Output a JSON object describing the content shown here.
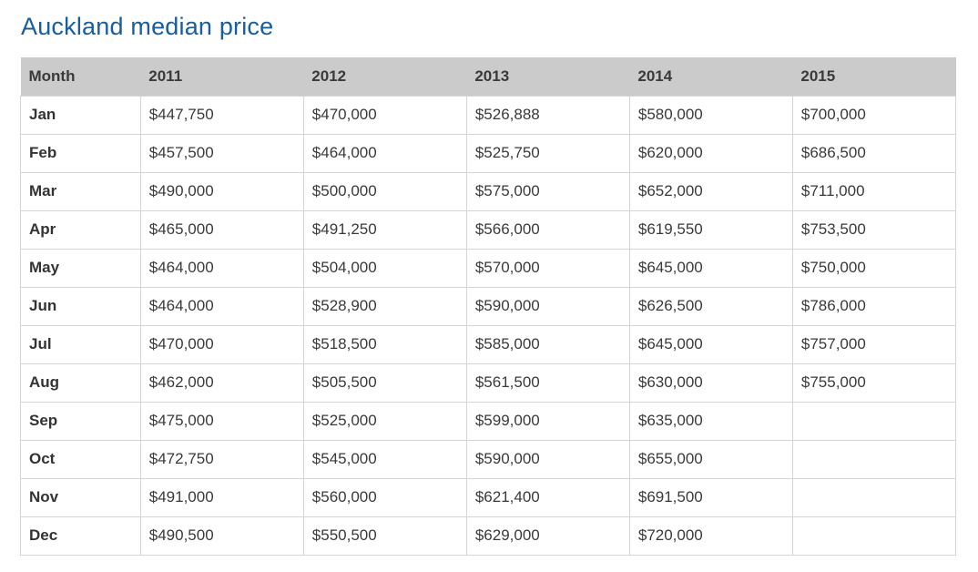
{
  "page": {
    "title": "Auckland median price"
  },
  "colors": {
    "title_blue": "#1a5d9c",
    "header_background": "#cbcbcb",
    "cell_border": "#d5d5d5",
    "text": "#333333"
  },
  "table": {
    "columns": [
      "Month",
      "2011",
      "2012",
      "2013",
      "2014",
      "2015"
    ],
    "rows": [
      {
        "month": "Jan",
        "values": [
          "$447,750",
          "$470,000",
          "$526,888",
          "$580,000",
          "$700,000"
        ]
      },
      {
        "month": "Feb",
        "values": [
          "$457,500",
          "$464,000",
          "$525,750",
          "$620,000",
          "$686,500"
        ]
      },
      {
        "month": "Mar",
        "values": [
          "$490,000",
          "$500,000",
          "$575,000",
          "$652,000",
          "$711,000"
        ]
      },
      {
        "month": "Apr",
        "values": [
          "$465,000",
          "$491,250",
          "$566,000",
          "$619,550",
          "$753,500"
        ]
      },
      {
        "month": "May",
        "values": [
          "$464,000",
          "$504,000",
          "$570,000",
          "$645,000",
          "$750,000"
        ]
      },
      {
        "month": "Jun",
        "values": [
          "$464,000",
          "$528,900",
          "$590,000",
          "$626,500",
          "$786,000"
        ]
      },
      {
        "month": "Jul",
        "values": [
          "$470,000",
          "$518,500",
          "$585,000",
          "$645,000",
          "$757,000"
        ]
      },
      {
        "month": "Aug",
        "values": [
          "$462,000",
          "$505,500",
          "$561,500",
          "$630,000",
          "$755,000"
        ]
      },
      {
        "month": "Sep",
        "values": [
          "$475,000",
          "$525,000",
          "$599,000",
          "$635,000",
          ""
        ]
      },
      {
        "month": "Oct",
        "values": [
          "$472,750",
          "$545,000",
          "$590,000",
          "$655,000",
          ""
        ]
      },
      {
        "month": "Nov",
        "values": [
          "$491,000",
          "$560,000",
          "$621,400",
          "$691,500",
          ""
        ]
      },
      {
        "month": "Dec",
        "values": [
          "$490,500",
          "$550,500",
          "$629,000",
          "$720,000",
          ""
        ]
      }
    ]
  },
  "chart_data": {
    "type": "table",
    "title": "Auckland median price",
    "categories": [
      "Jan",
      "Feb",
      "Mar",
      "Apr",
      "May",
      "Jun",
      "Jul",
      "Aug",
      "Sep",
      "Oct",
      "Nov",
      "Dec"
    ],
    "series": [
      {
        "name": "2011",
        "values": [
          447750,
          457500,
          490000,
          465000,
          464000,
          464000,
          470000,
          462000,
          475000,
          472750,
          491000,
          490500
        ]
      },
      {
        "name": "2012",
        "values": [
          470000,
          464000,
          500000,
          491250,
          504000,
          528900,
          518500,
          505500,
          525000,
          545000,
          560000,
          550500
        ]
      },
      {
        "name": "2013",
        "values": [
          526888,
          525750,
          575000,
          566000,
          570000,
          590000,
          585000,
          561500,
          599000,
          590000,
          621400,
          629000
        ]
      },
      {
        "name": "2014",
        "values": [
          580000,
          620000,
          652000,
          619550,
          645000,
          626500,
          645000,
          630000,
          635000,
          655000,
          691500,
          720000
        ]
      },
      {
        "name": "2015",
        "values": [
          700000,
          686500,
          711000,
          753500,
          750000,
          786000,
          757000,
          755000,
          null,
          null,
          null,
          null
        ]
      }
    ]
  }
}
